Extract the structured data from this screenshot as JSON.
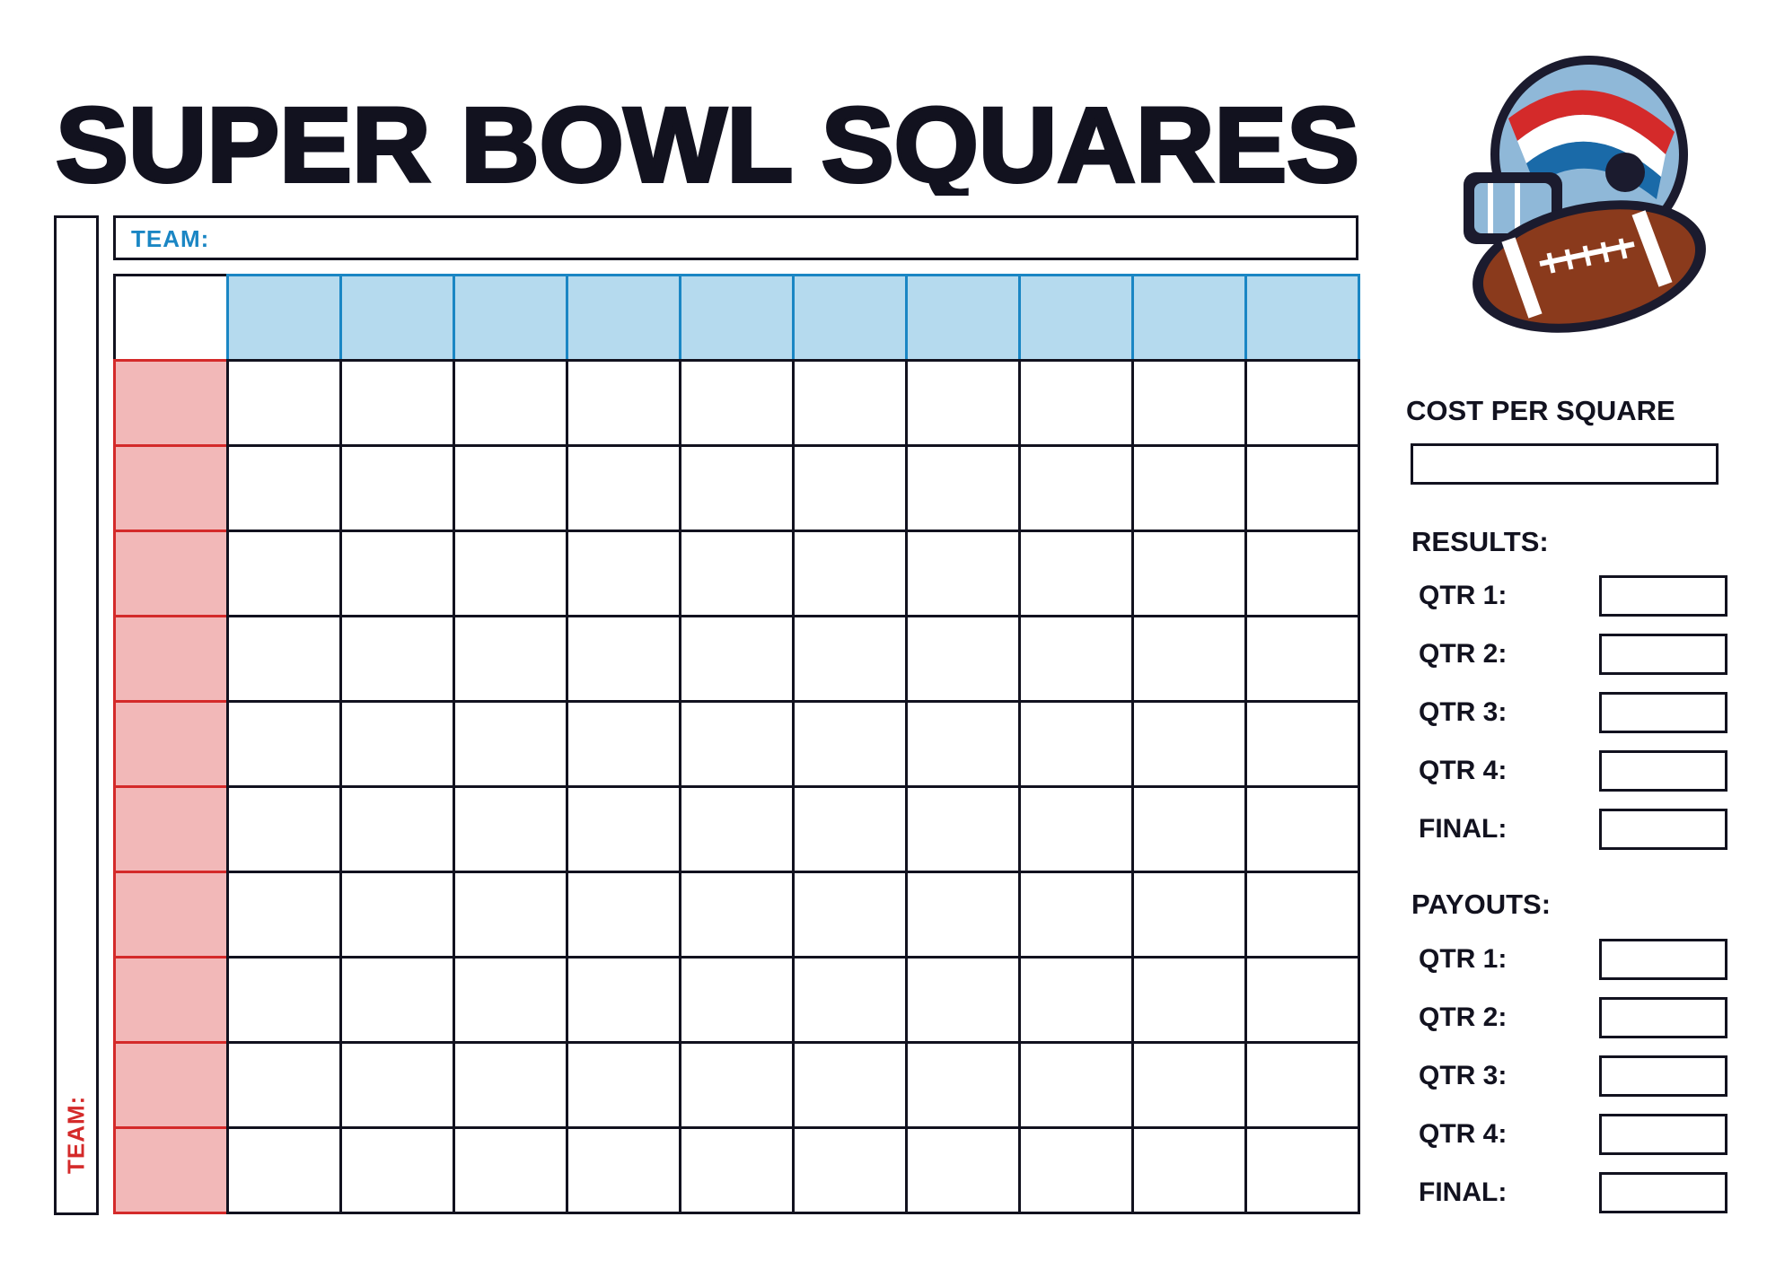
{
  "title": "SUPER BOWL SQUARES",
  "top_team_label": "TEAM:",
  "left_team_label": "TEAM:",
  "grid": {
    "columns": 10,
    "rows": 10
  },
  "colors": {
    "ink": "#12121f",
    "header_fill": "#b5daee",
    "header_border": "#1a86c4",
    "row_fill": "#f2b8b8",
    "row_border": "#d42a2a"
  },
  "logo": {
    "icon": "football-helmet-with-football"
  },
  "sidebar": {
    "cost_label": "COST PER SQUARE",
    "results_heading": "RESULTS:",
    "results": [
      "QTR 1:",
      "QTR 2:",
      "QTR 3:",
      "QTR 4:",
      "FINAL:"
    ],
    "payouts_heading": "PAYOUTS:",
    "payouts": [
      "QTR 1:",
      "QTR 2:",
      "QTR 3:",
      "QTR 4:",
      "FINAL:"
    ]
  }
}
